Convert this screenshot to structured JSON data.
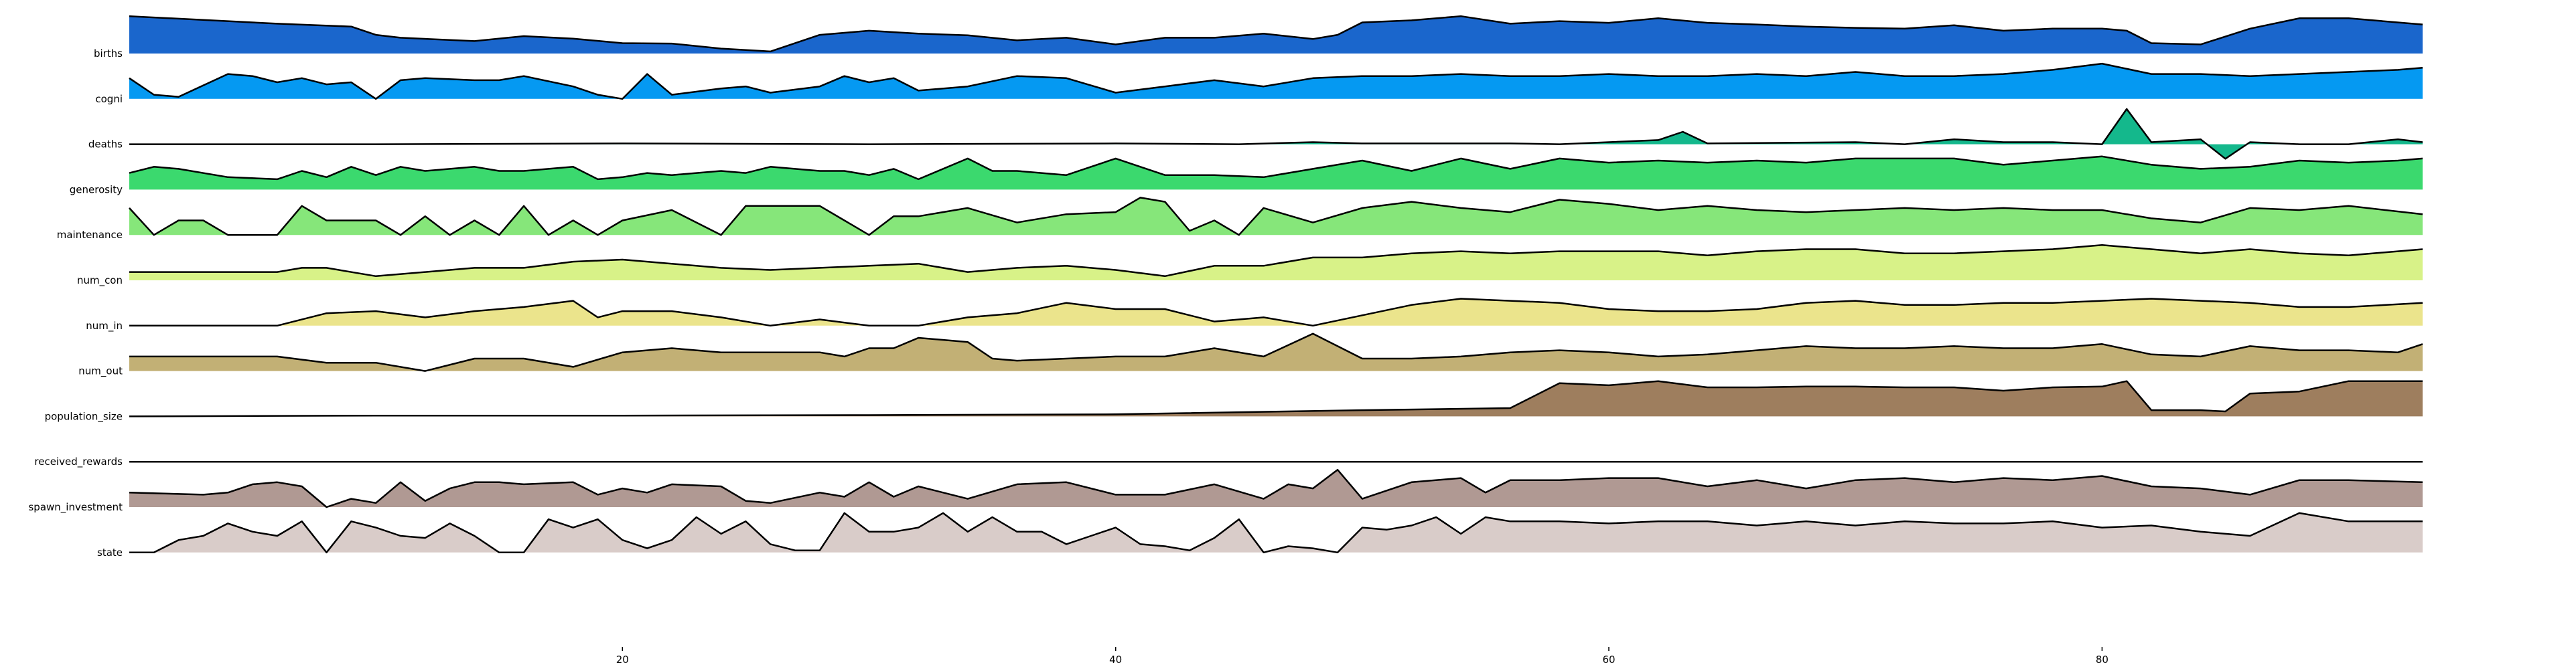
{
  "chart_data": {
    "type": "area",
    "subtype": "ridgeline",
    "title": "",
    "xlabel": "",
    "ylabel": "",
    "xlim": [
      0,
      93
    ],
    "xticks": [
      20,
      40,
      60,
      80
    ],
    "grid": false,
    "legend": "none",
    "series": [
      {
        "name": "births",
        "color": "#1a66cc",
        "x": [
          0,
          6,
          9,
          10,
          11,
          14,
          16,
          18,
          20,
          22,
          24,
          26,
          28,
          30,
          32,
          34,
          36,
          38,
          40,
          42,
          44,
          46,
          48,
          49,
          50,
          52,
          54,
          56,
          58,
          60,
          62,
          64,
          66,
          68,
          70,
          72,
          74,
          76,
          78,
          80,
          81,
          82,
          84,
          86,
          88,
          90,
          93
        ],
        "y": [
          0.9,
          0.72,
          0.65,
          0.45,
          0.38,
          0.3,
          0.42,
          0.36,
          0.25,
          0.24,
          0.12,
          0.05,
          0.45,
          0.55,
          0.48,
          0.44,
          0.32,
          0.38,
          0.22,
          0.38,
          0.38,
          0.48,
          0.35,
          0.45,
          0.75,
          0.8,
          0.9,
          0.72,
          0.78,
          0.74,
          0.85,
          0.74,
          0.7,
          0.65,
          0.62,
          0.6,
          0.68,
          0.55,
          0.6,
          0.6,
          0.55,
          0.25,
          0.22,
          0.6,
          0.85,
          0.85,
          0.7
        ]
      },
      {
        "name": "cogni",
        "color": "#0599f2",
        "x": [
          0,
          1,
          2,
          4,
          5,
          6,
          7,
          8,
          9,
          10,
          11,
          12,
          14,
          15,
          16,
          18,
          19,
          20,
          21,
          22,
          24,
          25,
          26,
          28,
          29,
          30,
          31,
          32,
          34,
          36,
          38,
          40,
          42,
          44,
          46,
          48,
          50,
          52,
          54,
          56,
          58,
          60,
          62,
          64,
          66,
          68,
          70,
          72,
          74,
          76,
          78,
          80,
          82,
          84,
          86,
          88,
          90,
          92,
          93
        ],
        "y": [
          0.5,
          0.1,
          0.05,
          0.6,
          0.55,
          0.4,
          0.5,
          0.35,
          0.4,
          0.0,
          0.45,
          0.5,
          0.45,
          0.45,
          0.55,
          0.3,
          0.1,
          0.0,
          0.6,
          0.1,
          0.25,
          0.3,
          0.15,
          0.3,
          0.55,
          0.4,
          0.5,
          0.2,
          0.3,
          0.55,
          0.5,
          0.15,
          0.3,
          0.45,
          0.3,
          0.5,
          0.55,
          0.55,
          0.6,
          0.55,
          0.55,
          0.6,
          0.55,
          0.55,
          0.6,
          0.55,
          0.65,
          0.55,
          0.55,
          0.6,
          0.7,
          0.85,
          0.6,
          0.6,
          0.55,
          0.6,
          0.65,
          0.7,
          0.75
        ]
      },
      {
        "name": "deaths",
        "color": "#14b88c",
        "x": [
          0,
          10,
          20,
          30,
          40,
          45,
          48,
          50,
          56,
          58,
          60,
          62,
          63,
          64,
          70,
          72,
          74,
          76,
          78,
          80,
          81,
          82,
          84,
          85,
          86,
          88,
          90,
          92,
          93
        ],
        "y": [
          0.0,
          0.0,
          0.02,
          0.0,
          0.02,
          0.0,
          0.05,
          0.02,
          0.02,
          0.0,
          0.05,
          0.1,
          0.3,
          0.02,
          0.05,
          0.0,
          0.12,
          0.05,
          0.05,
          0.0,
          0.85,
          0.05,
          0.12,
          -0.35,
          0.05,
          0.0,
          0.0,
          0.12,
          0.05
        ]
      },
      {
        "name": "generosity",
        "color": "#3bd96e",
        "x": [
          0,
          1,
          2,
          4,
          6,
          7,
          8,
          9,
          10,
          11,
          12,
          14,
          15,
          16,
          18,
          19,
          20,
          21,
          22,
          24,
          25,
          26,
          28,
          29,
          30,
          31,
          32,
          34,
          35,
          36,
          38,
          40,
          42,
          44,
          46,
          48,
          50,
          52,
          54,
          56,
          58,
          60,
          62,
          64,
          66,
          68,
          70,
          72,
          74,
          76,
          78,
          80,
          82,
          84,
          86,
          88,
          90,
          92,
          93
        ],
        "y": [
          0.4,
          0.55,
          0.5,
          0.3,
          0.25,
          0.45,
          0.3,
          0.55,
          0.35,
          0.55,
          0.45,
          0.55,
          0.45,
          0.45,
          0.55,
          0.25,
          0.3,
          0.4,
          0.35,
          0.45,
          0.4,
          0.55,
          0.45,
          0.45,
          0.35,
          0.5,
          0.25,
          0.75,
          0.45,
          0.45,
          0.35,
          0.75,
          0.35,
          0.35,
          0.3,
          0.5,
          0.7,
          0.45,
          0.75,
          0.5,
          0.75,
          0.65,
          0.7,
          0.65,
          0.7,
          0.65,
          0.75,
          0.75,
          0.75,
          0.6,
          0.7,
          0.8,
          0.6,
          0.5,
          0.55,
          0.7,
          0.65,
          0.7,
          0.75
        ]
      },
      {
        "name": "maintenance",
        "color": "#86e67a",
        "x": [
          0,
          1,
          2,
          3,
          4,
          6,
          7,
          8,
          9,
          10,
          11,
          12,
          13,
          14,
          15,
          16,
          17,
          18,
          19,
          20,
          22,
          23,
          24,
          25,
          26,
          28,
          29,
          30,
          31,
          32,
          34,
          36,
          38,
          40,
          41,
          42,
          43,
          44,
          45,
          46,
          48,
          50,
          52,
          54,
          56,
          58,
          60,
          62,
          64,
          66,
          68,
          70,
          72,
          74,
          76,
          78,
          80,
          82,
          84,
          86,
          88,
          90,
          93
        ],
        "y": [
          0.65,
          0.0,
          0.35,
          0.35,
          0.0,
          0.0,
          0.7,
          0.35,
          0.35,
          0.35,
          0.0,
          0.45,
          0.0,
          0.35,
          0.0,
          0.7,
          0.0,
          0.35,
          0.0,
          0.35,
          0.6,
          0.3,
          0.0,
          0.7,
          0.7,
          0.7,
          0.35,
          0.0,
          0.45,
          0.45,
          0.65,
          0.3,
          0.5,
          0.55,
          0.9,
          0.8,
          0.1,
          0.35,
          0.0,
          0.65,
          0.3,
          0.65,
          0.8,
          0.65,
          0.55,
          0.85,
          0.75,
          0.6,
          0.7,
          0.6,
          0.55,
          0.6,
          0.65,
          0.6,
          0.65,
          0.6,
          0.6,
          0.4,
          0.3,
          0.65,
          0.6,
          0.7,
          0.5
        ]
      },
      {
        "name": "num_con",
        "color": "#d8f288",
        "x": [
          0,
          6,
          7,
          8,
          10,
          14,
          16,
          18,
          20,
          22,
          24,
          26,
          28,
          30,
          32,
          34,
          36,
          38,
          40,
          42,
          44,
          46,
          48,
          50,
          52,
          54,
          56,
          58,
          60,
          62,
          64,
          66,
          68,
          70,
          72,
          74,
          76,
          78,
          80,
          82,
          84,
          86,
          88,
          90,
          92,
          93
        ],
        "y": [
          0.2,
          0.2,
          0.3,
          0.3,
          0.1,
          0.3,
          0.3,
          0.45,
          0.5,
          0.4,
          0.3,
          0.25,
          0.3,
          0.35,
          0.4,
          0.2,
          0.3,
          0.35,
          0.25,
          0.1,
          0.35,
          0.35,
          0.55,
          0.55,
          0.65,
          0.7,
          0.65,
          0.7,
          0.7,
          0.7,
          0.6,
          0.7,
          0.75,
          0.75,
          0.65,
          0.65,
          0.7,
          0.75,
          0.85,
          0.75,
          0.65,
          0.75,
          0.65,
          0.6,
          0.7,
          0.75
        ]
      },
      {
        "name": "num_in",
        "color": "#ebe48c",
        "x": [
          0,
          6,
          8,
          10,
          12,
          14,
          16,
          18,
          19,
          20,
          22,
          24,
          26,
          28,
          30,
          32,
          34,
          36,
          38,
          40,
          42,
          44,
          46,
          48,
          50,
          52,
          54,
          56,
          58,
          60,
          62,
          64,
          66,
          68,
          70,
          72,
          74,
          76,
          78,
          80,
          82,
          84,
          86,
          88,
          90,
          93
        ],
        "y": [
          0.0,
          0.0,
          0.3,
          0.35,
          0.2,
          0.35,
          0.45,
          0.6,
          0.2,
          0.35,
          0.35,
          0.2,
          0.0,
          0.15,
          0.0,
          0.0,
          0.2,
          0.3,
          0.55,
          0.4,
          0.4,
          0.1,
          0.2,
          0.0,
          0.25,
          0.5,
          0.65,
          0.6,
          0.55,
          0.4,
          0.35,
          0.35,
          0.4,
          0.55,
          0.6,
          0.5,
          0.5,
          0.55,
          0.55,
          0.6,
          0.65,
          0.6,
          0.55,
          0.45,
          0.45,
          0.55
        ]
      },
      {
        "name": "num_out",
        "color": "#c2b075",
        "x": [
          0,
          6,
          8,
          10,
          12,
          14,
          15,
          16,
          18,
          20,
          22,
          24,
          26,
          28,
          29,
          30,
          31,
          32,
          34,
          35,
          36,
          38,
          40,
          42,
          44,
          46,
          48,
          49,
          50,
          52,
          54,
          56,
          58,
          60,
          62,
          64,
          66,
          68,
          70,
          72,
          74,
          76,
          78,
          80,
          82,
          84,
          86,
          88,
          90,
          92,
          93
        ],
        "y": [
          0.35,
          0.35,
          0.2,
          0.2,
          0.0,
          0.3,
          0.3,
          0.3,
          0.1,
          0.45,
          0.55,
          0.45,
          0.45,
          0.45,
          0.35,
          0.55,
          0.55,
          0.8,
          0.7,
          0.3,
          0.25,
          0.3,
          0.35,
          0.35,
          0.55,
          0.35,
          0.9,
          0.6,
          0.3,
          0.3,
          0.35,
          0.45,
          0.5,
          0.45,
          0.35,
          0.4,
          0.5,
          0.6,
          0.55,
          0.55,
          0.6,
          0.55,
          0.55,
          0.65,
          0.4,
          0.35,
          0.6,
          0.5,
          0.5,
          0.45,
          0.65
        ]
      },
      {
        "name": "population_size",
        "color": "#9e7e5e",
        "x": [
          0,
          10,
          20,
          30,
          40,
          50,
          56,
          58,
          60,
          62,
          64,
          66,
          68,
          70,
          72,
          74,
          76,
          78,
          80,
          81,
          82,
          84,
          85,
          86,
          88,
          90,
          93
        ],
        "y": [
          0.0,
          0.02,
          0.02,
          0.03,
          0.05,
          0.15,
          0.2,
          0.8,
          0.75,
          0.85,
          0.7,
          0.7,
          0.72,
          0.72,
          0.7,
          0.7,
          0.62,
          0.7,
          0.72,
          0.85,
          0.15,
          0.15,
          0.12,
          0.55,
          0.6,
          0.85,
          0.85
        ]
      },
      {
        "name": "received_rewards",
        "color": "#ffffff",
        "x": [
          0,
          93
        ],
        "y": [
          0.0,
          0.0
        ]
      },
      {
        "name": "spawn_investment",
        "color": "#b09993",
        "x": [
          0,
          3,
          4,
          5,
          6,
          7,
          8,
          9,
          10,
          11,
          12,
          13,
          14,
          15,
          16,
          18,
          19,
          20,
          21,
          22,
          24,
          25,
          26,
          28,
          29,
          30,
          31,
          32,
          34,
          36,
          38,
          40,
          42,
          44,
          46,
          47,
          48,
          49,
          50,
          52,
          54,
          55,
          56,
          58,
          60,
          62,
          64,
          66,
          68,
          70,
          72,
          74,
          76,
          78,
          80,
          82,
          84,
          86,
          88,
          90,
          93
        ],
        "y": [
          0.35,
          0.3,
          0.35,
          0.55,
          0.6,
          0.5,
          0.0,
          0.2,
          0.1,
          0.6,
          0.15,
          0.45,
          0.6,
          0.6,
          0.55,
          0.6,
          0.3,
          0.45,
          0.35,
          0.55,
          0.5,
          0.15,
          0.1,
          0.35,
          0.25,
          0.6,
          0.25,
          0.5,
          0.2,
          0.55,
          0.6,
          0.3,
          0.3,
          0.55,
          0.2,
          0.55,
          0.45,
          0.9,
          0.2,
          0.6,
          0.7,
          0.35,
          0.65,
          0.65,
          0.7,
          0.7,
          0.5,
          0.65,
          0.45,
          0.65,
          0.7,
          0.6,
          0.7,
          0.65,
          0.75,
          0.5,
          0.45,
          0.3,
          0.65,
          0.65,
          0.6
        ]
      },
      {
        "name": "state",
        "color": "#d9ccc9",
        "x": [
          0,
          1,
          2,
          3,
          4,
          5,
          6,
          7,
          8,
          9,
          10,
          11,
          12,
          13,
          14,
          15,
          16,
          17,
          18,
          19,
          20,
          21,
          22,
          23,
          24,
          25,
          26,
          27,
          28,
          29,
          30,
          31,
          32,
          33,
          34,
          35,
          36,
          37,
          38,
          39,
          40,
          41,
          42,
          43,
          44,
          45,
          46,
          47,
          48,
          49,
          50,
          51,
          52,
          53,
          54,
          55,
          56,
          57,
          58,
          60,
          62,
          64,
          66,
          68,
          70,
          72,
          74,
          76,
          78,
          80,
          82,
          84,
          86,
          88,
          90,
          93
        ],
        "y": [
          0.0,
          0.0,
          0.3,
          0.4,
          0.7,
          0.5,
          0.4,
          0.75,
          0.0,
          0.75,
          0.6,
          0.4,
          0.35,
          0.7,
          0.4,
          0.0,
          0.0,
          0.8,
          0.6,
          0.8,
          0.3,
          0.1,
          0.3,
          0.85,
          0.45,
          0.75,
          0.2,
          0.05,
          0.05,
          0.95,
          0.5,
          0.5,
          0.6,
          0.95,
          0.5,
          0.85,
          0.5,
          0.5,
          0.2,
          0.4,
          0.6,
          0.2,
          0.15,
          0.05,
          0.35,
          0.8,
          0.0,
          0.15,
          0.1,
          0.0,
          0.6,
          0.55,
          0.65,
          0.85,
          0.45,
          0.85,
          0.75,
          0.75,
          0.75,
          0.7,
          0.75,
          0.75,
          0.65,
          0.75,
          0.65,
          0.75,
          0.7,
          0.7,
          0.75,
          0.6,
          0.65,
          0.5,
          0.4,
          0.95,
          0.75,
          0.75
        ]
      }
    ]
  }
}
